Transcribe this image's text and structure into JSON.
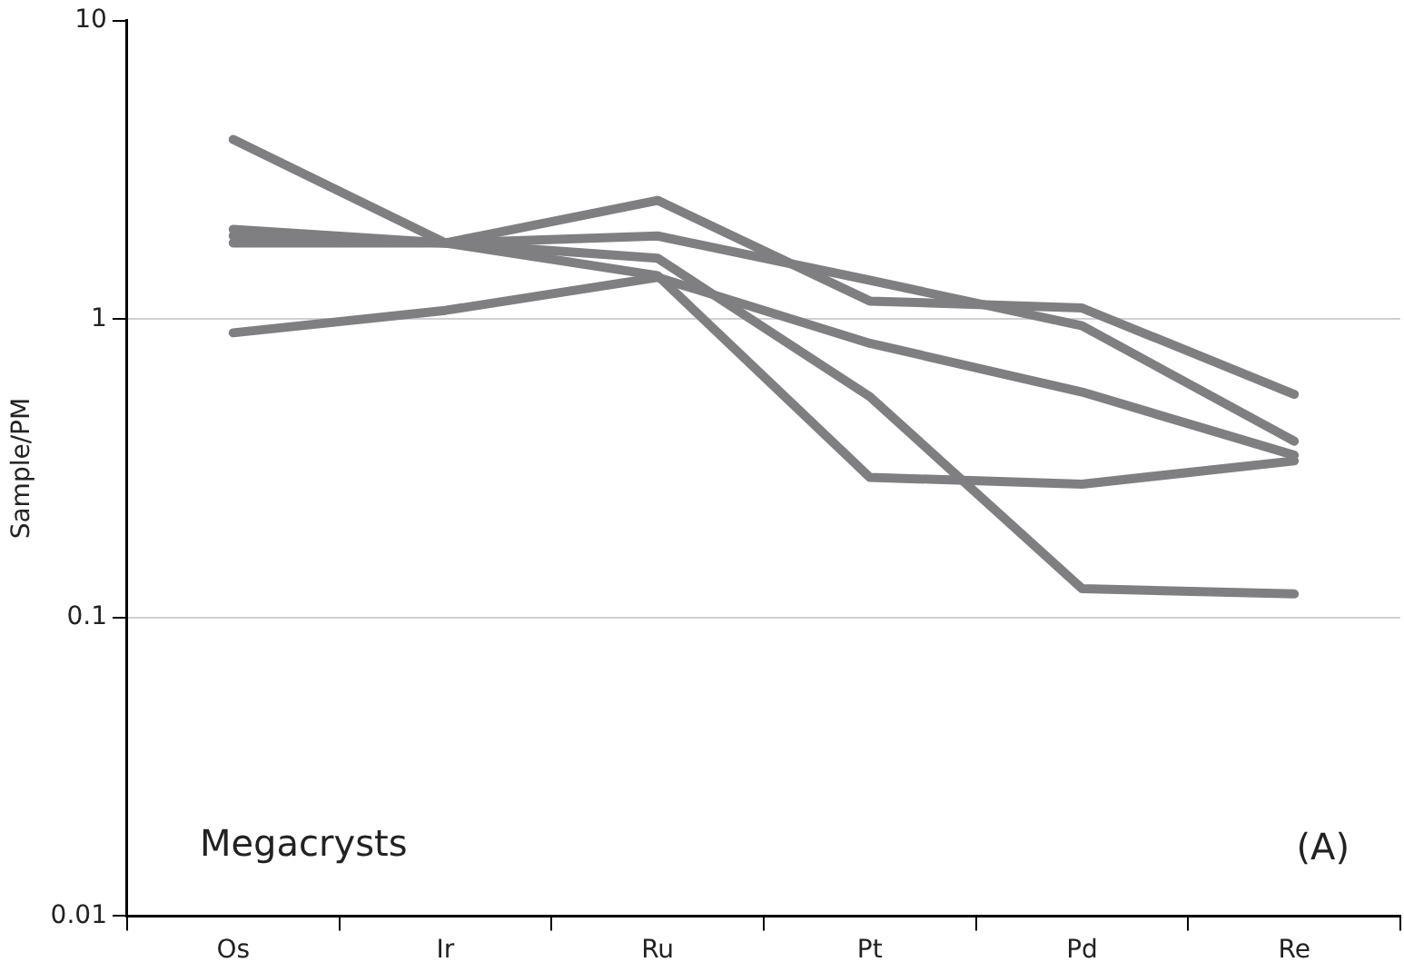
{
  "chart_data": {
    "type": "line",
    "ylabel": "Sample/PM",
    "categories": [
      "Os",
      "Ir",
      "Ru",
      "Pt",
      "Pd",
      "Re"
    ],
    "series": [
      {
        "color": "#7f7f82",
        "values": [
          2.0,
          1.8,
          2.5,
          1.15,
          1.09,
          0.56
        ]
      },
      {
        "color": "#7f7f82",
        "values": [
          1.9,
          1.8,
          1.9,
          1.35,
          0.95,
          0.39
        ]
      },
      {
        "color": "#7f7f82",
        "values": [
          1.8,
          1.8,
          1.6,
          0.55,
          0.125,
          0.12
        ]
      },
      {
        "color": "#7f7f82",
        "values": [
          0.9,
          1.07,
          1.38,
          0.83,
          0.57,
          0.35
        ]
      },
      {
        "color": "#7f7f82",
        "values": [
          4.0,
          1.8,
          1.4,
          0.295,
          0.28,
          0.335
        ]
      }
    ],
    "log": "y",
    "ylim": [
      0.01,
      10
    ],
    "yticks": [
      0.01,
      0.1,
      1,
      10
    ],
    "grid": "y",
    "legend": false,
    "marker": "none",
    "line_style": "solid",
    "annotations": [
      "Megacrysts",
      "(A)"
    ]
  }
}
